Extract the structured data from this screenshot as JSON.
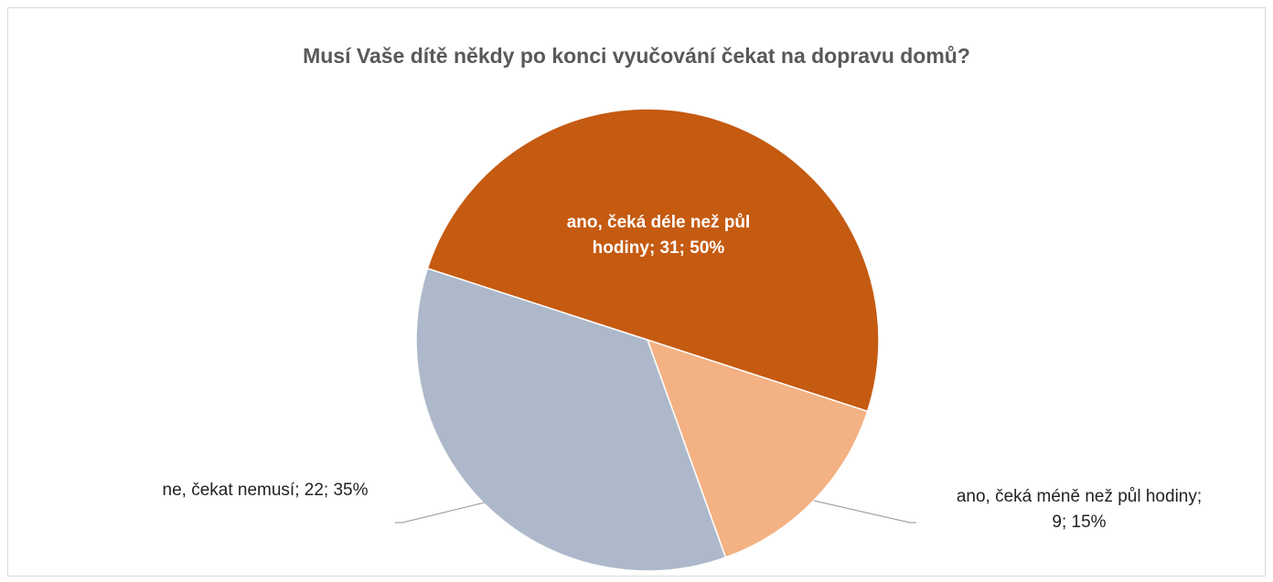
{
  "chart_data": {
    "type": "pie",
    "title": "Musí Vaše dítě někdy po konci vyučování čekat na dopravu domů?",
    "values": [
      31,
      9,
      22
    ],
    "value_labels": [
      "ano, čeká déle než půl hodiny; 31; 50%",
      "ano, čeká méně než půl hodiny; 9; 15%",
      "ne, čekat nemusí; 22; 35%"
    ],
    "colors": [
      "#c55a11",
      "#f4b183",
      "#adb9ca"
    ]
  }
}
